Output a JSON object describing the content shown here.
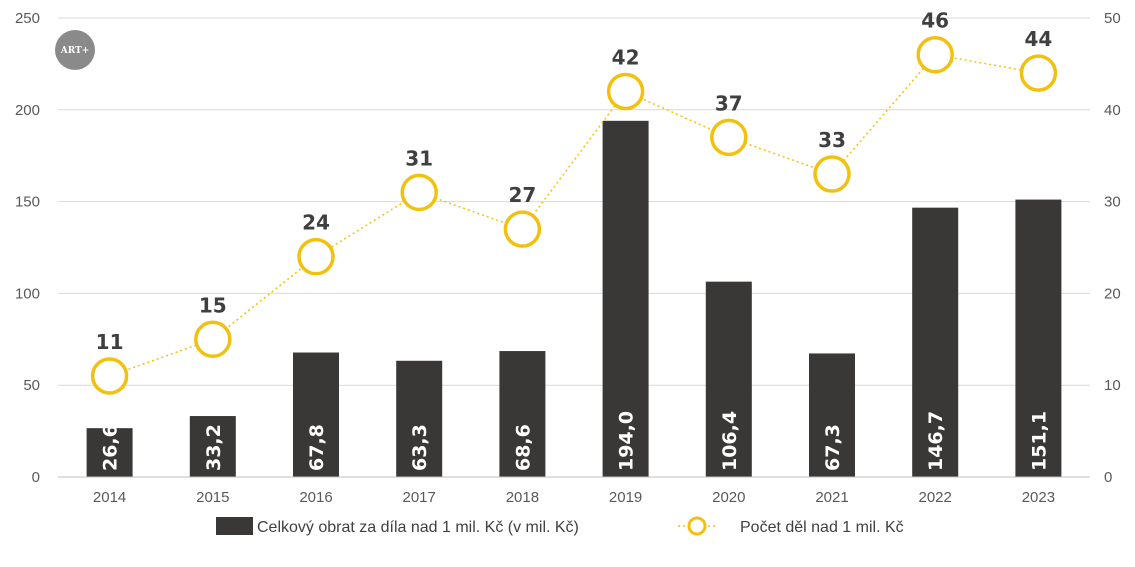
{
  "logo": {
    "text": "ART+"
  },
  "chart_data": {
    "type": "bar",
    "categories": [
      "2014",
      "2015",
      "2016",
      "2017",
      "2018",
      "2019",
      "2020",
      "2021",
      "2022",
      "2023"
    ],
    "series": [
      {
        "name": "Celkový obrat za díla nad 1 mil. Kč (v mil. Kč)",
        "type": "bar",
        "axis": "left",
        "values": [
          26.6,
          33.2,
          67.8,
          63.3,
          68.6,
          194.0,
          106.4,
          67.3,
          146.7,
          151.1
        ],
        "labels": [
          "26,6",
          "33,2",
          "67,8",
          "63,3",
          "68,6",
          "194,0",
          "106,4",
          "67,3",
          "146,7",
          "151,1"
        ],
        "color": "#3a3836"
      },
      {
        "name": "Počet děl nad 1 mil. Kč",
        "type": "line",
        "axis": "right",
        "values": [
          11,
          15,
          24,
          31,
          27,
          42,
          37,
          33,
          46,
          44
        ],
        "labels": [
          "11",
          "15",
          "24",
          "31",
          "27",
          "42",
          "37",
          "33",
          "46",
          "44"
        ],
        "color": "#f2c10f"
      }
    ],
    "y_left": {
      "min": 0,
      "max": 250,
      "ticks": [
        "0",
        "50",
        "100",
        "150",
        "200",
        "250"
      ]
    },
    "y_right": {
      "min": 0,
      "max": 50,
      "ticks": [
        "0",
        "10",
        "20",
        "30",
        "40",
        "50"
      ]
    },
    "grid": true,
    "legend_position": "bottom"
  }
}
